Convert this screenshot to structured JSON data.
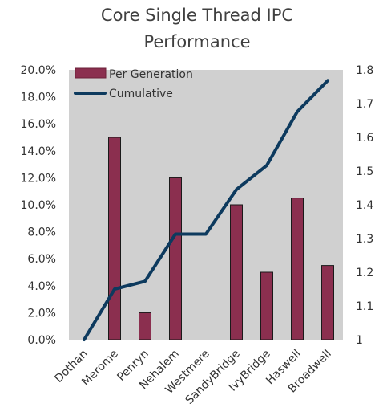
{
  "chart_data": {
    "type": "bar",
    "title_lines": [
      "Core Single Thread IPC",
      "Performance"
    ],
    "categories": [
      "Dothan",
      "Merome",
      "Penryn",
      "Nehalem",
      "Westmere",
      "SandyBridge",
      "IvyBridge",
      "Haswell",
      "Broadwell"
    ],
    "series": [
      {
        "name": "Per Generation",
        "type": "bar",
        "axis": "left",
        "color": "#8B2F4F",
        "values": [
          0.0,
          15.0,
          2.0,
          12.0,
          0.0,
          10.0,
          5.0,
          10.5,
          5.5
        ]
      },
      {
        "name": "Cumulative",
        "type": "line",
        "axis": "right",
        "color": "#0D3A5E",
        "values": [
          1.0,
          1.15,
          1.173,
          1.313,
          1.313,
          1.445,
          1.517,
          1.676,
          1.768
        ]
      }
    ],
    "left_axis": {
      "ylim": [
        0,
        20
      ],
      "ticks": [
        0,
        2,
        4,
        6,
        8,
        10,
        12,
        14,
        16,
        18,
        20
      ],
      "tick_labels": [
        "0.0%",
        "2.0%",
        "4.0%",
        "6.0%",
        "8.0%",
        "10.0%",
        "12.0%",
        "14.0%",
        "16.0%",
        "18.0%",
        "20.0%"
      ]
    },
    "right_axis": {
      "ylim": [
        1.0,
        1.8
      ],
      "ticks": [
        1.0,
        1.1,
        1.2,
        1.3,
        1.4,
        1.5,
        1.6,
        1.7,
        1.8
      ],
      "tick_labels": [
        "1",
        "1.1",
        "1.2",
        "1.3",
        "1.4",
        "1.5",
        "1.6",
        "1.7",
        "1.8"
      ]
    },
    "plot_background": "#D0D0D0",
    "grid": false,
    "legend_position": "top-left",
    "xlabel": "",
    "ylabel": ""
  }
}
